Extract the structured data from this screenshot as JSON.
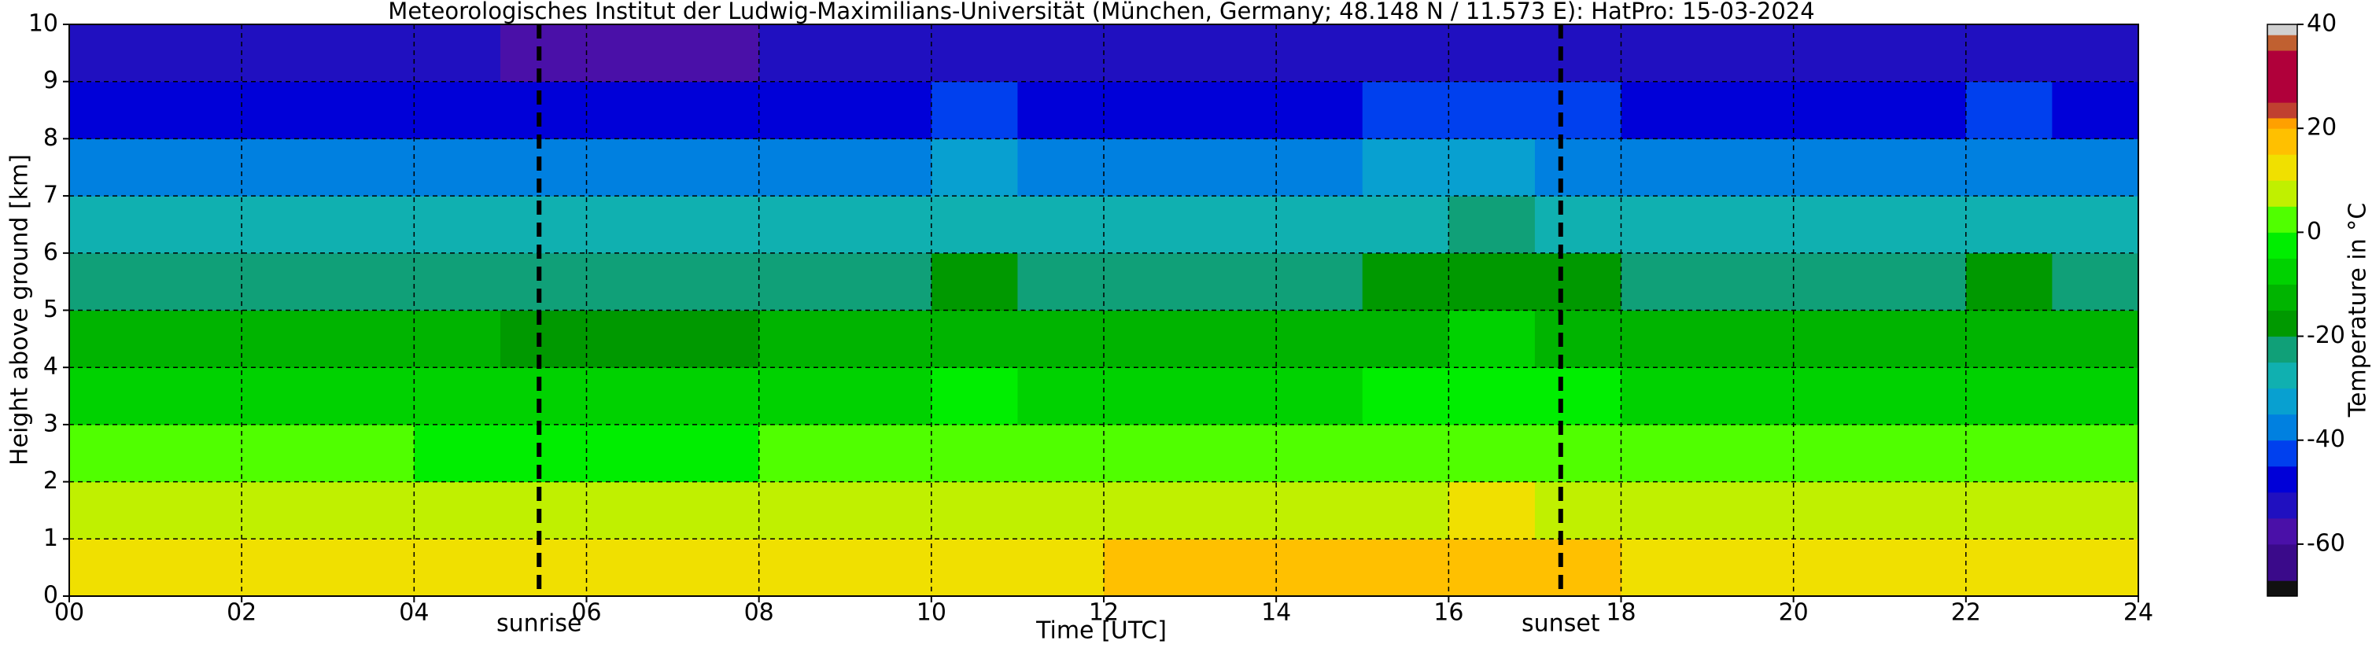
{
  "chart_data": {
    "type": "heatmap",
    "title": "Meteorologisches Institut der Ludwig-Maximilians-Universität (München, Germany; 48.148 N / 11.573 E):    HatPro: 15-03-2024",
    "x_label": "Time [UTC]",
    "y_label": "Height above ground [km]",
    "colorbar_label": "Temperature in °C",
    "xlim": [
      0,
      24
    ],
    "ylim": [
      0,
      10
    ],
    "xticks": [
      {
        "value": 0,
        "label": "00"
      },
      {
        "value": 2,
        "label": "02"
      },
      {
        "value": 4,
        "label": "04"
      },
      {
        "value": 6,
        "label": "06"
      },
      {
        "value": 8,
        "label": "08"
      },
      {
        "value": 10,
        "label": "10"
      },
      {
        "value": 12,
        "label": "12"
      },
      {
        "value": 14,
        "label": "14"
      },
      {
        "value": 16,
        "label": "16"
      },
      {
        "value": 18,
        "label": "18"
      },
      {
        "value": 20,
        "label": "20"
      },
      {
        "value": 22,
        "label": "22"
      },
      {
        "value": 24,
        "label": "24"
      }
    ],
    "yticks": [
      0,
      1,
      2,
      3,
      4,
      5,
      6,
      7,
      8,
      9,
      10
    ],
    "grid": true,
    "clim": [
      -70,
      40
    ],
    "cticks": [
      -60,
      -40,
      -20,
      0,
      20,
      40
    ],
    "colorscale": [
      {
        "value": -70,
        "color": "#111111"
      },
      {
        "value": -67,
        "color": "#3a0a8a"
      },
      {
        "value": -60,
        "color": "#4a10a8"
      },
      {
        "value": -55,
        "color": "#2010c0"
      },
      {
        "value": -50,
        "color": "#0000d8"
      },
      {
        "value": -45,
        "color": "#0040ee"
      },
      {
        "value": -40,
        "color": "#0080e0"
      },
      {
        "value": -35,
        "color": "#08a0d0"
      },
      {
        "value": -30,
        "color": "#10b0b0"
      },
      {
        "value": -25,
        "color": "#10a078"
      },
      {
        "value": -20,
        "color": "#009900"
      },
      {
        "value": -15,
        "color": "#00b400"
      },
      {
        "value": -10,
        "color": "#00d200"
      },
      {
        "value": -5,
        "color": "#00ee00"
      },
      {
        "value": 0,
        "color": "#50ff00"
      },
      {
        "value": 5,
        "color": "#c0f000"
      },
      {
        "value": 10,
        "color": "#f0e000"
      },
      {
        "value": 15,
        "color": "#ffc000"
      },
      {
        "value": 20,
        "color": "#ffa000"
      },
      {
        "value": 22,
        "color": "#c04030"
      },
      {
        "value": 25,
        "color": "#b0003a"
      },
      {
        "value": 35,
        "color": "#c06030"
      },
      {
        "value": 38,
        "color": "#d0d0d0"
      }
    ],
    "xbins": [
      0,
      1,
      2,
      3,
      4,
      5,
      6,
      7,
      8,
      9,
      10,
      11,
      12,
      13,
      14,
      15,
      16,
      17,
      18,
      19,
      20,
      21,
      22,
      23,
      24
    ],
    "ybins": [
      0,
      1,
      2,
      3,
      4,
      5,
      6,
      7,
      8,
      9,
      10
    ],
    "values": [
      [
        11,
        11,
        11,
        10,
        10,
        10,
        10,
        11,
        12,
        12,
        14,
        14,
        15,
        15,
        16,
        16,
        17,
        15,
        13,
        12,
        12,
        11,
        11,
        11
      ],
      [
        6,
        6,
        6,
        5,
        5,
        5,
        5,
        5,
        6,
        6,
        8,
        7,
        7,
        8,
        8,
        8,
        10,
        9,
        7,
        6,
        6,
        6,
        6,
        6
      ],
      [
        0,
        0,
        0,
        0,
        -1,
        -1,
        -1,
        -1,
        0,
        0,
        3,
        0,
        0,
        0,
        0,
        2,
        4,
        2,
        0,
        0,
        0,
        0,
        0,
        0
      ],
      [
        -7,
        -7,
        -7,
        -7,
        -8,
        -8,
        -8,
        -8,
        -7,
        -7,
        -4,
        -7,
        -7,
        -7,
        -7,
        -4,
        -3,
        -5,
        -7,
        -7,
        -7,
        -7,
        -7,
        -7
      ],
      [
        -15,
        -15,
        -15,
        -15,
        -15,
        -16,
        -16,
        -16,
        -15,
        -15,
        -12,
        -15,
        -15,
        -15,
        -15,
        -11,
        -10,
        -13,
        -15,
        -15,
        -15,
        -15,
        -15,
        -15
      ],
      [
        -21,
        -21,
        -21,
        -21,
        -21,
        -22,
        -22,
        -22,
        -21,
        -21,
        -18,
        -21,
        -21,
        -21,
        -21,
        -18,
        -17,
        -20,
        -21,
        -21,
        -21,
        -21,
        -20,
        -21
      ],
      [
        -29,
        -29,
        -29,
        -29,
        -29,
        -30,
        -30,
        -30,
        -29,
        -29,
        -26,
        -29,
        -29,
        -29,
        -29,
        -26,
        -25,
        -28,
        -29,
        -29,
        -29,
        -29,
        -28,
        -29
      ],
      [
        -37,
        -37,
        -37,
        -37,
        -37,
        -38,
        -38,
        -38,
        -37,
        -37,
        -34,
        -37,
        -37,
        -37,
        -37,
        -34,
        -33,
        -36,
        -37,
        -37,
        -37,
        -37,
        -36,
        -37
      ],
      [
        -46,
        -46,
        -46,
        -46,
        -46,
        -47,
        -47,
        -47,
        -46,
        -46,
        -42,
        -46,
        -46,
        -46,
        -46,
        -42,
        -41,
        -45,
        -46,
        -46,
        -46,
        -46,
        -45,
        -46
      ],
      [
        -55,
        -55,
        -55,
        -55,
        -55,
        -56,
        -56,
        -56,
        -55,
        -55,
        -52,
        -55,
        -55,
        -55,
        -55,
        -52,
        -51,
        -54,
        -55,
        -55,
        -55,
        -55,
        -54,
        -55
      ]
    ],
    "markers": [
      {
        "label": "sunrise",
        "time": 5.45
      },
      {
        "label": "sunset",
        "time": 17.3
      }
    ]
  }
}
